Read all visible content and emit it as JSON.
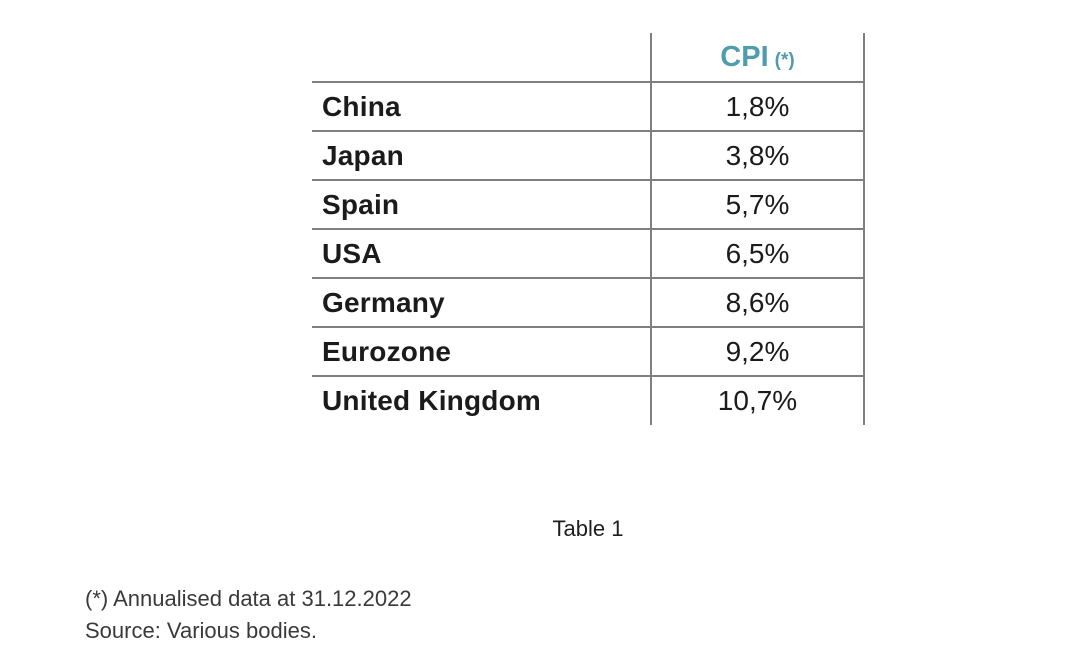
{
  "table": {
    "header": {
      "label": "CPI",
      "note_marker": "(*)"
    },
    "rows": [
      {
        "country": "China",
        "value": "1,8%"
      },
      {
        "country": "Japan",
        "value": "3,8%"
      },
      {
        "country": "Spain",
        "value": "5,7%"
      },
      {
        "country": "USA",
        "value": "6,5%"
      },
      {
        "country": "Germany",
        "value": "8,6%"
      },
      {
        "country": "Eurozone",
        "value": "9,2%"
      },
      {
        "country": "United Kingdom",
        "value": "10,7%"
      }
    ]
  },
  "caption": "Table 1",
  "footnotes": {
    "annualised": "(*) Annualised data at 31.12.2022",
    "source": "Source: Various bodies."
  },
  "colors": {
    "accent_teal": "#4e9dae",
    "rule_gray": "#7f7f7f",
    "text_black": "#1b1b1b",
    "footnote_gray": "#3a3a3a"
  },
  "chart_data": {
    "type": "table",
    "title": "Table 1",
    "columns": [
      "",
      "CPI (*)"
    ],
    "rows": [
      [
        "China",
        "1,8%"
      ],
      [
        "Japan",
        "3,8%"
      ],
      [
        "Spain",
        "5,7%"
      ],
      [
        "USA",
        "6,5%"
      ],
      [
        "Germany",
        "8,6%"
      ],
      [
        "Eurozone",
        "9,2%"
      ],
      [
        "United Kingdom",
        "10,7%"
      ]
    ],
    "values_percent": [
      1.8,
      3.8,
      5.7,
      6.5,
      8.6,
      9.2,
      10.7
    ],
    "notes": [
      "(*) Annualised data at 31.12.2022",
      "Source: Various bodies."
    ]
  }
}
